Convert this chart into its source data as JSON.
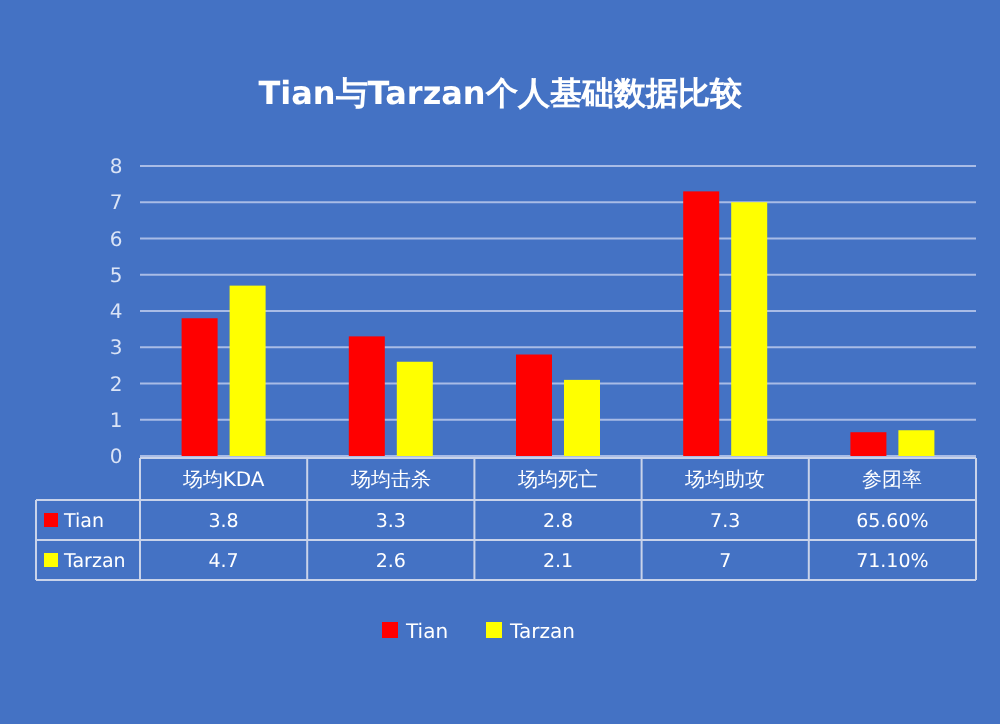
{
  "chart_data": {
    "type": "bar",
    "title": "Tian与Tarzan个人基础数据比较",
    "categories": [
      "场均KDA",
      "场均击杀",
      "场均死亡",
      "场均助攻",
      "参团率"
    ],
    "series": [
      {
        "name": "Tian",
        "color": "#ff0000",
        "values": [
          3.8,
          3.3,
          2.8,
          7.3,
          0.656
        ],
        "value_labels": [
          "3.8",
          "3.3",
          "2.8",
          "7.3",
          "65.60%"
        ]
      },
      {
        "name": "Tarzan",
        "color": "#ffff00",
        "values": [
          4.7,
          2.6,
          2.1,
          7,
          0.711
        ],
        "value_labels": [
          "4.7",
          "2.6",
          "2.1",
          "7",
          "71.10%"
        ]
      }
    ],
    "ylim": [
      0,
      8
    ],
    "yticks": [
      0,
      1,
      2,
      3,
      4,
      5,
      6,
      7,
      8
    ],
    "grid": "y",
    "legend": "bottom"
  }
}
